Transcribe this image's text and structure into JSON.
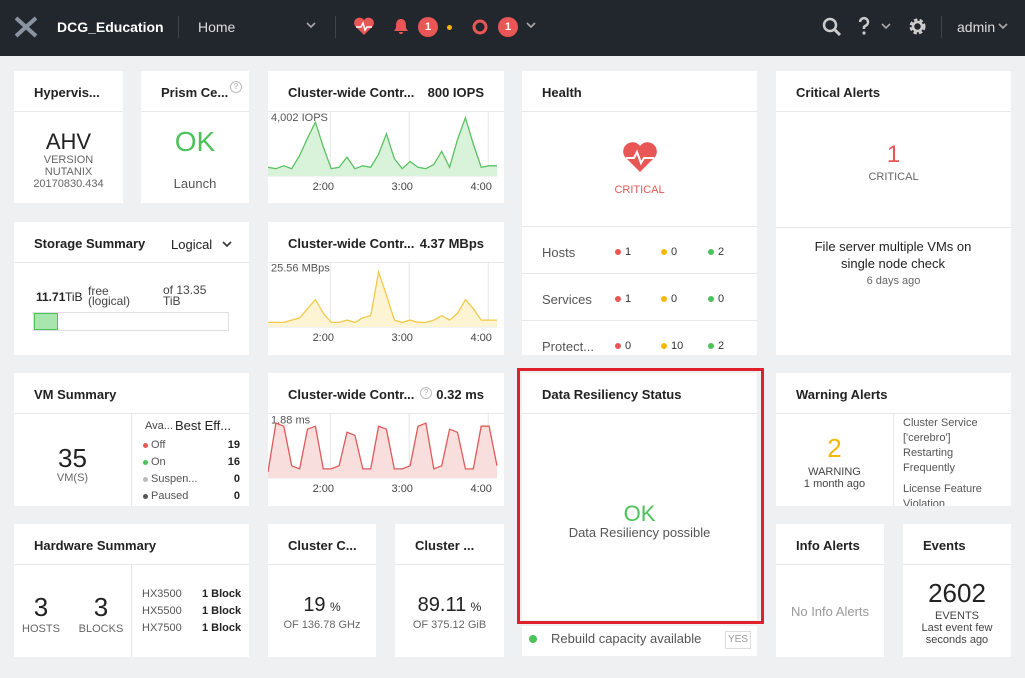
{
  "topbar": {
    "cluster": "DCG_Education",
    "menu": "Home",
    "alert_count": 1,
    "event_count": 1,
    "user": "admin"
  },
  "hypervisor": {
    "title": "Hypervis...",
    "name": "AHV",
    "version_label": "VERSION",
    "vendor": "NUTANIX",
    "version": "20170830.434"
  },
  "prism": {
    "title": "Prism Ce...",
    "status": "OK",
    "link": "Launch"
  },
  "charts": [
    {
      "type": "area",
      "title": "Cluster-wide Contr...",
      "current": "800 IOPS",
      "color": "#5cc163",
      "fill": "#d9f2da",
      "xlim": [
        0,
        29
      ],
      "xticks": [
        {
          "value": 7,
          "label": "2:00"
        },
        {
          "value": 17,
          "label": "3:00"
        },
        {
          "value": 27,
          "label": "4:00"
        }
      ],
      "ylim": [
        0,
        4400
      ],
      "yticks": [
        {
          "value": 4002,
          "label": "4,002 IOPS"
        }
      ],
      "values": [
        600,
        500,
        700,
        500,
        1400,
        2600,
        3700,
        2000,
        500,
        600,
        1300,
        500,
        700,
        600,
        1500,
        2900,
        1200,
        500,
        1000,
        600,
        500,
        800,
        1700,
        600,
        2500,
        4002,
        2200,
        600,
        700,
        700
      ]
    },
    {
      "type": "area",
      "title": "Cluster-wide Contr...",
      "current": "4.37 MBps",
      "color": "#f2c94c",
      "fill": "#fdf4d3",
      "xlim": [
        0,
        29
      ],
      "xticks": [
        {
          "value": 7,
          "label": "2:00"
        },
        {
          "value": 17,
          "label": "3:00"
        },
        {
          "value": 27,
          "label": "4:00"
        }
      ],
      "ylim": [
        0,
        28
      ],
      "yticks": [
        {
          "value": 25.56,
          "label": "25.56 MBps"
        }
      ],
      "values": [
        2,
        2,
        2,
        3,
        4,
        8,
        12,
        6,
        2,
        2,
        3,
        2,
        4,
        5,
        24,
        14,
        3,
        2,
        3,
        2,
        2,
        3,
        5,
        3,
        6,
        12,
        8,
        3,
        3,
        3
      ]
    },
    {
      "type": "area",
      "title": "Cluster-wide Contr...",
      "current": "0.32 ms",
      "color": "#e05a5a",
      "fill": "#f9dede",
      "xlim": [
        0,
        29
      ],
      "xticks": [
        {
          "value": 7,
          "label": "2:00"
        },
        {
          "value": 17,
          "label": "3:00"
        },
        {
          "value": 27,
          "label": "4:00"
        }
      ],
      "ylim": [
        0,
        2.1
      ],
      "yticks": [
        {
          "value": 1.88,
          "label": "1.88 ms"
        }
      ],
      "values": [
        0.2,
        1.8,
        1.7,
        0.4,
        0.3,
        1.6,
        1.7,
        0.3,
        0.3,
        0.4,
        1.5,
        1.4,
        0.3,
        0.3,
        1.7,
        1.6,
        0.3,
        0.3,
        0.4,
        1.7,
        1.8,
        0.3,
        0.4,
        1.6,
        1.5,
        0.3,
        0.3,
        1.7,
        1.7,
        0.4
      ]
    }
  ],
  "health": {
    "title": "Health",
    "status": "CRITICAL",
    "rows": [
      {
        "label": "Hosts",
        "critical": 1,
        "warning": 0,
        "good": 2
      },
      {
        "label": "Services",
        "critical": 1,
        "warning": 0,
        "good": 0
      },
      {
        "label": "Protect...",
        "critical": 0,
        "warning": 10,
        "good": 2
      }
    ]
  },
  "critical_alerts": {
    "title": "Critical Alerts",
    "count": 1,
    "label": "CRITICAL",
    "latest": "File server multiple VMs on single node check",
    "time": "6 days ago"
  },
  "storage": {
    "title": "Storage Summary",
    "mode": "Logical",
    "free": 11.71,
    "free_unit": "TiB",
    "free_label": "free (logical)",
    "total_prefix": "of",
    "total": 13.35,
    "total_unit": "TiB"
  },
  "vm": {
    "title": "VM Summary",
    "count": 35,
    "unit": "VM(S)",
    "col1": "Ava...",
    "col2": "Best Eff...",
    "rows": [
      {
        "label": "Off",
        "value": 19
      },
      {
        "label": "On",
        "value": 16
      },
      {
        "label": "Suspen...",
        "value": 0
      },
      {
        "label": "Paused",
        "value": 0
      }
    ]
  },
  "resiliency": {
    "title": "Data Resiliency Status",
    "status": "OK",
    "detail": "Data Resiliency possible",
    "rebuild": "Rebuild capacity available",
    "rebuild_value": "YES"
  },
  "warning_alerts": {
    "title": "Warning Alerts",
    "count": 2,
    "label": "WARNING",
    "time": "1 month ago",
    "items": [
      "Cluster Service ['cerebro'] Restarting Frequently",
      "License Feature Violation"
    ]
  },
  "hardware": {
    "title": "Hardware Summary",
    "hosts": 3,
    "hosts_label": "HOSTS",
    "blocks": 3,
    "blocks_label": "BLOCKS",
    "models": [
      {
        "name": "HX3500",
        "count": "1 Block"
      },
      {
        "name": "HX5500",
        "count": "1 Block"
      },
      {
        "name": "HX7500",
        "count": "1 Block"
      }
    ]
  },
  "cpu": {
    "title": "Cluster C...",
    "value": 19,
    "unit": "%",
    "of": "OF 136.78 GHz"
  },
  "memory": {
    "title": "Cluster ...",
    "value": 89.11,
    "unit": "%",
    "of": "OF 375.12 GiB"
  },
  "info_alerts": {
    "title": "Info Alerts",
    "message": "No Info Alerts"
  },
  "events": {
    "title": "Events",
    "count": 2602,
    "label": "EVENTS",
    "time": "Last event few seconds ago"
  }
}
